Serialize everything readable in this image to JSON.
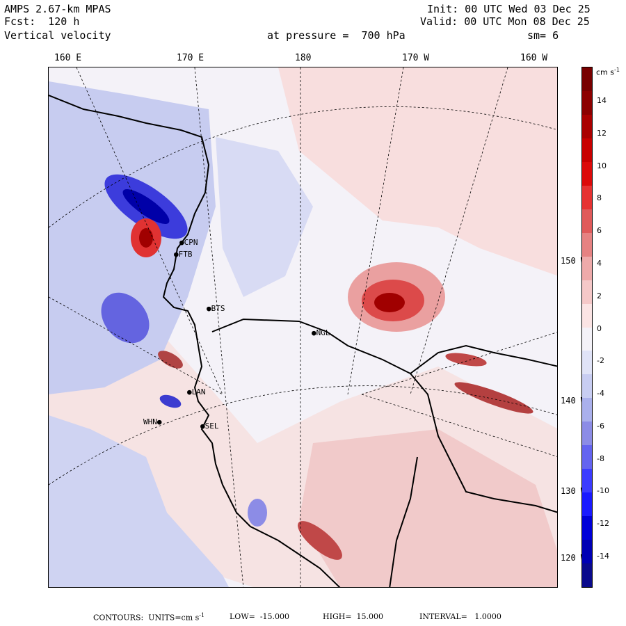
{
  "header": {
    "model": "AMPS 2.67-km MPAS",
    "forecast": "Fcst:  120 h",
    "field": "Vertical velocity",
    "init": "Init: 00 UTC Wed 03 Dec 25",
    "valid": "Valid: 00 UTC Mon 08 Dec 25",
    "level": "at pressure =  700 hPa",
    "smoothing": "sm= 6"
  },
  "longitude_labels": [
    "160 E",
    "170 E",
    "180",
    "170 W",
    "160 W"
  ],
  "latitude_labels": [
    "150 W",
    "140 W",
    "130 W",
    "120 W"
  ],
  "stations": [
    {
      "id": "CPN"
    },
    {
      "id": "FTB"
    },
    {
      "id": "BTS"
    },
    {
      "id": "NGL"
    },
    {
      "id": "LAN"
    },
    {
      "id": "WHN"
    },
    {
      "id": "SEL"
    }
  ],
  "colorbar": {
    "units": "cm s",
    "units_exp": "-1",
    "labels": [
      "14",
      "12",
      "10",
      "8",
      "6",
      "4",
      "2",
      "0",
      "-2",
      "-4",
      "-6",
      "-8",
      "-10",
      "-12",
      "-14"
    ],
    "colors": [
      "#0a0a8c",
      "#0000b4",
      "#0000d8",
      "#1a1aff",
      "#3c3cff",
      "#6464f0",
      "#8c8ce6",
      "#aab0ec",
      "#c8cdf2",
      "#e0e3f7",
      "#f4f2f8",
      "#fbe4e4",
      "#f5c8c8",
      "#eeaaaa",
      "#e68282",
      "#e05a5a",
      "#e63232",
      "#dc0a0a",
      "#c80000",
      "#aa0000",
      "#8c0000",
      "#780000"
    ]
  },
  "footer": {
    "contours": "CONTOURS:  UNITS=cm s",
    "units_exp": "-1",
    "low": "LOW=  -15.000",
    "high": "HIGH=  15.000",
    "interval": "INTERVAL=   1.0000"
  }
}
